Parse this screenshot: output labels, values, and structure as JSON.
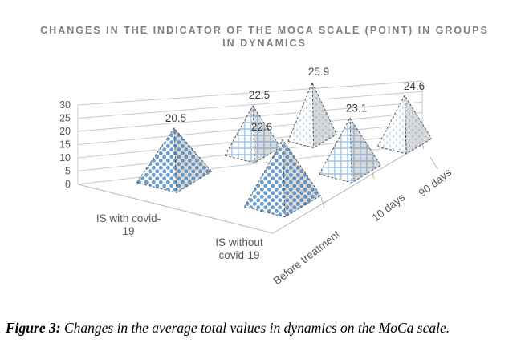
{
  "title": {
    "line1": "CHANGES IN THE INDICATOR OF THE MOCA SCALE (POINT) IN GROUPS",
    "line2": "IN DYNAMICS"
  },
  "caption": {
    "prefix": "Figure 3:",
    "rest": " Changes in the average total values in dynamics on the MoCa scale."
  },
  "chart_data": {
    "type": "bar",
    "bar_shape": "3d-pyramid",
    "title": "CHANGES IN THE INDICATOR OF THE MOCA SCALE (POINT) IN GROUPS IN DYNAMICS",
    "categories": [
      "Before treatment",
      "10 days",
      "90 days"
    ],
    "category_patterns": [
      "dots",
      "grid",
      "speckle"
    ],
    "series": [
      {
        "name": "IS with covid-19",
        "wrap": [
          "IS with covid-",
          "19"
        ],
        "values": [
          20.5,
          22.5,
          25.9
        ]
      },
      {
        "name": "IS without covid-19",
        "wrap": [
          "IS without",
          "covid-19"
        ],
        "values": [
          22.6,
          23.1,
          24.6
        ]
      }
    ],
    "value_axis": {
      "min": 0,
      "max": 30,
      "step": 5,
      "ticks": [
        0,
        5,
        10,
        15,
        20,
        25,
        30
      ]
    },
    "legend_position": "none",
    "grid": true,
    "colors": {
      "title": "#7f7f7f",
      "value_label": "#3f3f3f",
      "axis_text": "#595959",
      "gridline": "#c9c9c9",
      "axis_line": "#b5b5b5",
      "edge": "#4a4a4a",
      "dot_blue": "#6a9fd0",
      "grid_blue": "#9dc3e6",
      "speck_blue": "#b9cfdf",
      "face_white": "#ffffff",
      "speck_bg": "#fcfdfe",
      "shade": "rgba(104,111,118,0.26)"
    }
  }
}
